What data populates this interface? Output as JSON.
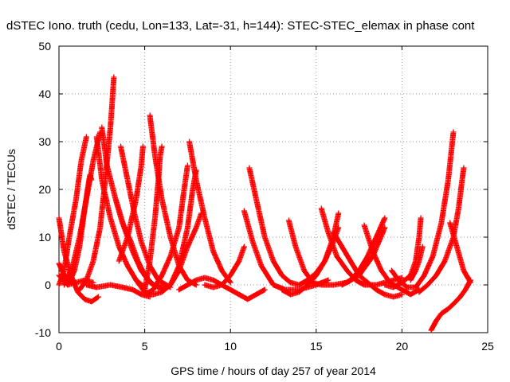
{
  "chart_data": {
    "type": "scatter",
    "title": "dSTEC Iono. truth (cedu, Lon=133, Lat=-31, h=144): STEC-STEC_elemax in phase cont",
    "xlabel": "GPS time / hours of day 257 of year 2014",
    "ylabel": "dSTEC  / TECUs",
    "xlim": [
      0,
      25
    ],
    "ylim": [
      -10,
      50
    ],
    "xticks": [
      0,
      5,
      10,
      15,
      20,
      25
    ],
    "yticks": [
      -10,
      0,
      10,
      20,
      30,
      40,
      50
    ],
    "xtick_labels": [
      "0",
      "5",
      "10",
      "15",
      "20",
      "25"
    ],
    "ytick_labels": [
      "-10",
      "0",
      "10",
      "20",
      "30",
      "40",
      "50"
    ],
    "grid": true,
    "marker": "+",
    "color": "#ff0000",
    "series": [
      {
        "points": [
          [
            0,
            4.5
          ],
          [
            0.3,
            2
          ],
          [
            0.6,
            0.5
          ],
          [
            0.9,
            3
          ],
          [
            1.2,
            8
          ],
          [
            1.5,
            16
          ],
          [
            1.8,
            23
          ],
          [
            1.9,
            22
          ]
        ]
      },
      {
        "points": [
          [
            0,
            14
          ],
          [
            0.3,
            7
          ],
          [
            0.7,
            2
          ],
          [
            1.1,
            -1.5
          ],
          [
            1.5,
            -3
          ],
          [
            1.9,
            -3.5
          ],
          [
            2.3,
            -2.5
          ]
        ]
      },
      {
        "points": [
          [
            0,
            0
          ],
          [
            0.3,
            3
          ],
          [
            0.6,
            10
          ],
          [
            1.0,
            18
          ],
          [
            1.3,
            26
          ],
          [
            1.6,
            31
          ]
        ]
      },
      {
        "points": [
          [
            0.3,
            0
          ],
          [
            0.8,
            4
          ],
          [
            1.2,
            10
          ],
          [
            1.6,
            18
          ],
          [
            2.0,
            26
          ],
          [
            2.4,
            32
          ]
        ]
      },
      {
        "points": [
          [
            1.2,
            -1
          ],
          [
            1.6,
            1
          ],
          [
            2.0,
            5
          ],
          [
            2.4,
            12
          ],
          [
            2.7,
            22
          ],
          [
            3.0,
            33
          ],
          [
            3.1,
            38
          ],
          [
            3.2,
            43.5
          ]
        ]
      },
      {
        "points": [
          [
            2.5,
            33
          ],
          [
            2.8,
            25
          ],
          [
            3.3,
            18
          ],
          [
            3.8,
            12
          ],
          [
            4.3,
            7
          ],
          [
            4.8,
            3
          ],
          [
            5.3,
            0.5
          ],
          [
            5.8,
            -0.5
          ],
          [
            6.3,
            -0.5
          ]
        ]
      },
      {
        "points": [
          [
            2.2,
            31
          ],
          [
            2.5,
            22
          ],
          [
            3.0,
            14
          ],
          [
            3.5,
            8
          ],
          [
            4.0,
            4
          ],
          [
            4.5,
            1
          ],
          [
            5.0,
            -0.5
          ]
        ]
      },
      {
        "points": [
          [
            1.6,
            0
          ],
          [
            2.2,
            -0.5
          ],
          [
            3.0,
            0
          ],
          [
            3.7,
            -0.5
          ],
          [
            4.3,
            -1
          ],
          [
            4.8,
            -2
          ],
          [
            5.3,
            -2.5
          ]
        ]
      },
      {
        "points": [
          [
            3.6,
            29
          ],
          [
            4.0,
            22
          ],
          [
            4.4,
            15
          ],
          [
            4.8,
            9
          ],
          [
            5.3,
            4
          ],
          [
            5.8,
            1
          ],
          [
            6.5,
            -0.5
          ]
        ]
      },
      {
        "points": [
          [
            3.3,
            18
          ],
          [
            3.7,
            13
          ],
          [
            4.2,
            9
          ],
          [
            4.6,
            5
          ],
          [
            5.0,
            2
          ],
          [
            5.5,
            0
          ],
          [
            6.0,
            -0.5
          ]
        ]
      },
      {
        "points": [
          [
            3.5,
            5
          ],
          [
            4.0,
            10
          ],
          [
            4.5,
            18
          ],
          [
            4.8,
            25
          ],
          [
            4.9,
            29
          ]
        ]
      },
      {
        "points": [
          [
            5.0,
            -1
          ],
          [
            5.3,
            5
          ],
          [
            5.6,
            14
          ],
          [
            5.8,
            22
          ],
          [
            5.9,
            27
          ],
          [
            6.0,
            29
          ]
        ]
      },
      {
        "points": [
          [
            5.3,
            35.5
          ],
          [
            5.6,
            27
          ],
          [
            6.0,
            18
          ],
          [
            6.5,
            10
          ],
          [
            7.0,
            4
          ],
          [
            7.5,
            1
          ],
          [
            8.0,
            0
          ]
        ]
      },
      {
        "points": [
          [
            4.5,
            1
          ],
          [
            5.0,
            -1.5
          ],
          [
            5.5,
            -2
          ],
          [
            6.0,
            -1.5
          ],
          [
            6.5,
            0
          ],
          [
            7.0,
            4
          ],
          [
            7.5,
            12
          ],
          [
            7.8,
            20
          ],
          [
            8.0,
            24
          ]
        ]
      },
      {
        "points": [
          [
            5.0,
            -2
          ],
          [
            5.5,
            -1
          ],
          [
            6.0,
            2
          ],
          [
            6.5,
            6
          ],
          [
            7.0,
            12
          ],
          [
            7.3,
            20
          ],
          [
            7.5,
            25
          ]
        ]
      },
      {
        "points": [
          [
            7.6,
            30
          ],
          [
            8.0,
            22
          ],
          [
            8.5,
            14
          ],
          [
            9.0,
            7
          ],
          [
            9.5,
            3
          ],
          [
            10.0,
            0.5
          ]
        ]
      },
      {
        "points": [
          [
            6.0,
            -1
          ],
          [
            6.5,
            0
          ],
          [
            7.0,
            3
          ],
          [
            7.5,
            8
          ],
          [
            8.0,
            12
          ],
          [
            8.3,
            15
          ]
        ]
      },
      {
        "points": [
          [
            7.0,
            -1
          ],
          [
            7.5,
            0
          ],
          [
            8.0,
            1
          ],
          [
            8.5,
            1.5
          ],
          [
            9.0,
            1
          ],
          [
            9.5,
            0
          ],
          [
            10.0,
            -1
          ],
          [
            10.5,
            -2
          ],
          [
            11.0,
            -3
          ],
          [
            11.5,
            -2
          ],
          [
            12.0,
            -1
          ]
        ]
      },
      {
        "points": [
          [
            8.5,
            0
          ],
          [
            9.0,
            -0.5
          ],
          [
            9.5,
            0
          ],
          [
            10.0,
            2
          ],
          [
            10.5,
            5
          ],
          [
            10.8,
            8
          ]
        ]
      },
      {
        "points": [
          [
            11.1,
            24.5
          ],
          [
            11.5,
            18
          ],
          [
            12.0,
            10
          ],
          [
            12.5,
            5
          ],
          [
            13.0,
            2
          ],
          [
            13.5,
            0.5
          ],
          [
            14.0,
            0
          ],
          [
            14.5,
            1
          ],
          [
            15.0,
            2.5
          ],
          [
            15.5,
            5
          ],
          [
            16.0,
            9
          ],
          [
            16.3,
            12
          ]
        ]
      },
      {
        "points": [
          [
            10.8,
            15.5
          ],
          [
            11.3,
            9
          ],
          [
            11.8,
            4
          ],
          [
            12.5,
            0
          ],
          [
            13.2,
            -1
          ],
          [
            14.0,
            -1
          ],
          [
            15.0,
            0
          ],
          [
            15.7,
            1
          ]
        ]
      },
      {
        "points": [
          [
            13.4,
            13.5
          ],
          [
            13.8,
            8
          ],
          [
            14.3,
            3
          ],
          [
            14.8,
            0.5
          ],
          [
            15.3,
            0
          ],
          [
            16.0,
            0
          ],
          [
            16.8,
            0.5
          ],
          [
            17.5,
            2
          ],
          [
            18.3,
            6
          ],
          [
            19.0,
            12
          ]
        ]
      },
      {
        "points": [
          [
            13.0,
            -1
          ],
          [
            13.5,
            -2
          ],
          [
            14.0,
            -1.5
          ],
          [
            14.5,
            0
          ],
          [
            15.0,
            2
          ],
          [
            15.5,
            5
          ],
          [
            16.0,
            10
          ],
          [
            16.3,
            15
          ]
        ]
      },
      {
        "points": [
          [
            15.3,
            16
          ],
          [
            15.7,
            11
          ],
          [
            16.2,
            6
          ],
          [
            16.8,
            3
          ],
          [
            17.3,
            1
          ],
          [
            17.8,
            0
          ],
          [
            18.5,
            0
          ],
          [
            19.0,
            0.5
          ],
          [
            19.5,
            1
          ],
          [
            20.0,
            1.5
          ]
        ]
      },
      {
        "points": [
          [
            16.0,
            11
          ],
          [
            16.5,
            8
          ],
          [
            17.0,
            5
          ],
          [
            17.5,
            2
          ],
          [
            18.0,
            0.5
          ],
          [
            18.5,
            -1
          ],
          [
            19.0,
            -2
          ],
          [
            19.5,
            -2.5
          ],
          [
            20.0,
            -2
          ]
        ]
      },
      {
        "points": [
          [
            17.8,
            12.5
          ],
          [
            18.3,
            7
          ],
          [
            18.8,
            3
          ],
          [
            19.3,
            0.5
          ],
          [
            20.0,
            -1
          ],
          [
            20.5,
            -2
          ],
          [
            21.0,
            -1
          ]
        ]
      },
      {
        "points": [
          [
            16.5,
            0
          ],
          [
            17.0,
            1
          ],
          [
            17.5,
            3
          ],
          [
            18.0,
            6
          ],
          [
            18.5,
            10
          ],
          [
            19.0,
            14
          ]
        ]
      },
      {
        "points": [
          [
            19.4,
            3
          ],
          [
            19.8,
            1
          ],
          [
            20.3,
            -0.5
          ],
          [
            20.8,
            -0.5
          ],
          [
            21.3,
            2
          ],
          [
            21.8,
            6
          ],
          [
            22.3,
            13
          ],
          [
            22.7,
            22
          ],
          [
            23.0,
            32
          ]
        ]
      },
      {
        "points": [
          [
            19.0,
            0
          ],
          [
            19.5,
            -0.5
          ],
          [
            20.0,
            0.5
          ],
          [
            20.5,
            2
          ],
          [
            20.8,
            5
          ],
          [
            21.0,
            10
          ],
          [
            21.1,
            14
          ]
        ]
      },
      {
        "points": [
          [
            20.5,
            1
          ],
          [
            20.8,
            3
          ],
          [
            21.0,
            5
          ],
          [
            21.2,
            8
          ]
        ]
      },
      {
        "points": [
          [
            21.0,
            -1.5
          ],
          [
            21.5,
            0
          ],
          [
            22.0,
            2
          ],
          [
            22.5,
            5
          ],
          [
            23.0,
            10
          ],
          [
            23.3,
            16
          ],
          [
            23.6,
            24.5
          ]
        ]
      },
      {
        "points": [
          [
            22.8,
            13
          ],
          [
            23.2,
            8
          ],
          [
            23.6,
            3
          ],
          [
            24.0,
            0.5
          ]
        ]
      },
      {
        "points": [
          [
            21.7,
            -9.5
          ],
          [
            22.0,
            -7.5
          ],
          [
            22.3,
            -6
          ],
          [
            22.7,
            -5
          ],
          [
            23.0,
            -4
          ],
          [
            23.4,
            -2.5
          ],
          [
            23.7,
            -1
          ],
          [
            24.0,
            1
          ]
        ]
      },
      {
        "points": [
          [
            0,
            2
          ],
          [
            0.5,
            0
          ],
          [
            1.0,
            0.5
          ],
          [
            1.5,
            1
          ],
          [
            2.0,
            0.5
          ]
        ]
      }
    ]
  }
}
